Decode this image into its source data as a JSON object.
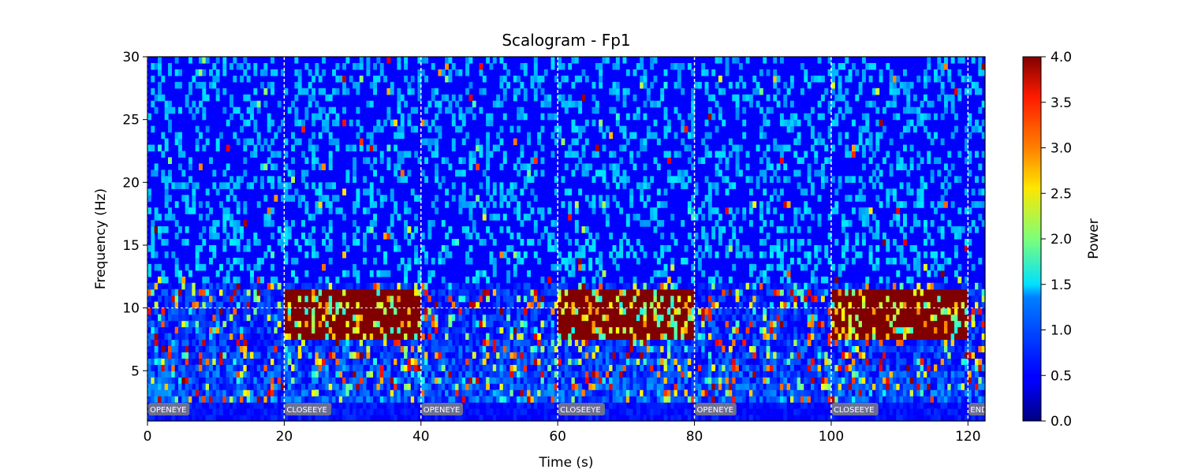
{
  "chart_data": {
    "type": "heatmap",
    "title": "Scalogram - Fp1",
    "xlabel": "Time (s)",
    "ylabel": "Frequency (Hz)",
    "xlim": [
      0,
      122.5
    ],
    "ylim": [
      1,
      30
    ],
    "x_ticks": [
      0,
      20,
      40,
      60,
      80,
      100,
      120
    ],
    "y_ticks": [
      5,
      10,
      15,
      20,
      25,
      30
    ],
    "x_tick_labels": [
      "0",
      "20",
      "40",
      "60",
      "80",
      "100",
      "120"
    ],
    "y_tick_labels": [
      "5",
      "10",
      "15",
      "20",
      "25",
      "30"
    ],
    "colormap": "jet",
    "colorbar": {
      "label": "Power",
      "range": [
        0.0,
        4.0
      ],
      "ticks": [
        0.0,
        0.5,
        1.0,
        1.5,
        2.0,
        2.5,
        3.0,
        3.5,
        4.0
      ],
      "tick_labels": [
        "0.0",
        "0.5",
        "1.0",
        "1.5",
        "2.0",
        "2.5",
        "3.0",
        "3.5",
        "4.0"
      ]
    },
    "event_markers": [
      {
        "time": 0,
        "label": "OPENEYE"
      },
      {
        "time": 20,
        "label": "CLOSEEYE"
      },
      {
        "time": 40,
        "label": "OPENEYE"
      },
      {
        "time": 60,
        "label": "CLOSEEYE"
      },
      {
        "time": 80,
        "label": "OPENEYE"
      },
      {
        "time": 100,
        "label": "CLOSEEYE"
      },
      {
        "time": 120,
        "label": "END"
      }
    ],
    "reference_line_hz": 10,
    "high_power_segments": [
      {
        "t0": 20,
        "t1": 40,
        "f0": 7.5,
        "f1": 11.5,
        "power": 4.0
      },
      {
        "t0": 60,
        "t1": 80,
        "f0": 7.5,
        "f1": 11.5,
        "power": 4.0
      },
      {
        "t0": 100,
        "t1": 120,
        "f0": 7.5,
        "f1": 11.5,
        "power": 4.0
      }
    ],
    "colors": {
      "low": "#0000ff",
      "high": "#800000",
      "marker_line": "#ffffff",
      "marker_label_bg": "#808080"
    }
  }
}
